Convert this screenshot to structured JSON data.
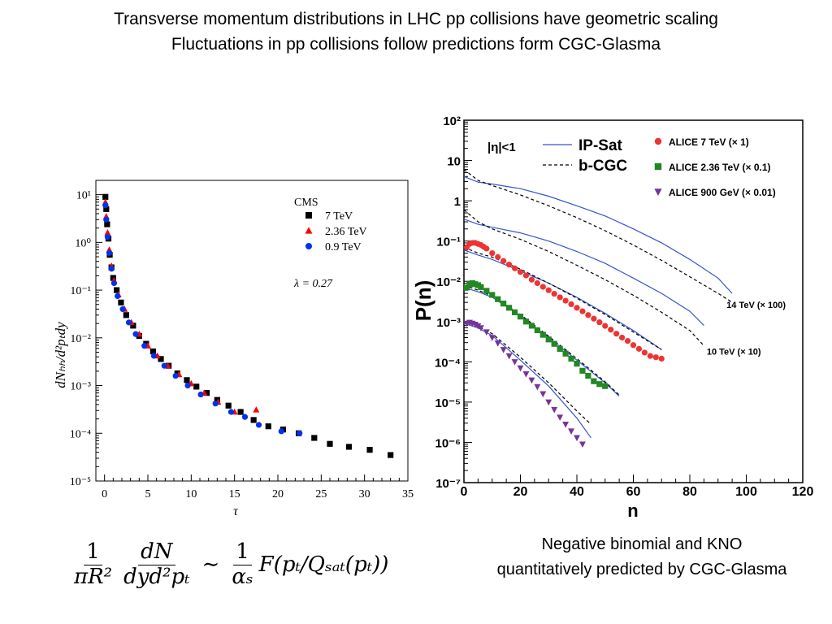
{
  "page": {
    "title_line1": "Transverse momentum distributions in LHC pp collisions have geometric scaling",
    "title_line2": "Fluctuations in pp collisions follow predictions form CGC-Glasma",
    "caption_line1": "Negative binomial and KNO",
    "caption_line2": "quantitatively predicted by CGC-Glasma",
    "formula": {
      "lhs1_num": "1",
      "lhs1_den": "πR²",
      "lhs2_num": "dN",
      "lhs2_den": "dyd²pₜ",
      "sim": "∼",
      "rhs_num": "1",
      "rhs_den": "αₛ",
      "rhs_fn": "F(pₜ/Qₛₐₜ(pₜ))"
    }
  },
  "chart_data": [
    {
      "type": "scatter",
      "yscale": "log",
      "xlim": [
        -1,
        35
      ],
      "ylim_log10": [
        -5,
        1.3
      ],
      "xticks": [
        "0",
        "5",
        "10",
        "15",
        "20",
        "25",
        "30",
        "35"
      ],
      "xtick_values": [
        0,
        5,
        10,
        15,
        20,
        25,
        30,
        35
      ],
      "yticks": [
        "10⁻⁵",
        "10⁻⁴",
        "10⁻³",
        "10⁻²",
        "10⁻¹",
        "10⁰",
        "10¹"
      ],
      "ytick_exps": [
        -5,
        -4,
        -3,
        -2,
        -1,
        0,
        1
      ],
      "xlabel": "τ",
      "ylabel": "dNₕₕ/d²pₜdy",
      "legend_title": "CMS",
      "annotation": "λ = 0.27",
      "series": [
        {
          "name": "7 TeV",
          "color": "#000000",
          "marker": "square",
          "x": [
            0.1,
            0.2,
            0.3,
            0.45,
            0.6,
            0.8,
            1.0,
            1.4,
            1.9,
            2.5,
            3.3,
            4.0,
            4.8,
            5.6,
            6.5,
            7.4,
            8.4,
            9.5,
            10.6,
            11.8,
            13.0,
            14.3,
            15.7,
            17.2,
            18.9,
            20.6,
            22.4,
            24.2,
            26.0,
            28.2,
            30.6,
            33.0
          ],
          "y": [
            9.0,
            5.0,
            2.4,
            1.2,
            0.55,
            0.3,
            0.18,
            0.1,
            0.055,
            0.03,
            0.018,
            0.011,
            0.0075,
            0.0052,
            0.0036,
            0.0026,
            0.0018,
            0.0013,
            0.00095,
            0.0007,
            0.0005,
            0.00038,
            0.00028,
            0.00019,
            0.00014,
            0.00012,
            0.0001,
            8e-05,
            6e-05,
            5.2e-05,
            4.5e-05,
            3.5e-05
          ]
        },
        {
          "name": "2.36 TeV",
          "color": "#ff0000",
          "marker": "triangle",
          "x": [
            0.1,
            0.2,
            0.35,
            0.55,
            0.8,
            1.1,
            1.6,
            2.3,
            3.1,
            4.0,
            5.0,
            6.1,
            7.3,
            8.6,
            10.0,
            11.5,
            13.1,
            15.0,
            17.5
          ],
          "y": [
            7.0,
            3.5,
            1.6,
            0.7,
            0.32,
            0.16,
            0.08,
            0.04,
            0.021,
            0.012,
            0.0068,
            0.0042,
            0.0026,
            0.0017,
            0.0011,
            0.0007,
            0.00045,
            0.00028,
            0.00031
          ]
        },
        {
          "name": "0.9 TeV",
          "color": "#0033ee",
          "marker": "circle",
          "x": [
            0.1,
            0.2,
            0.35,
            0.55,
            0.8,
            1.1,
            1.5,
            2.1,
            2.8,
            3.6,
            4.6,
            5.7,
            6.9,
            8.2,
            9.6,
            11.1,
            12.8,
            14.6,
            16.2,
            17.8,
            20.4,
            22.5
          ],
          "y": [
            6.0,
            3.0,
            1.3,
            0.6,
            0.28,
            0.14,
            0.075,
            0.04,
            0.021,
            0.012,
            0.0068,
            0.0042,
            0.0026,
            0.0016,
            0.001,
            0.00065,
            0.00042,
            0.00028,
            0.00022,
            0.00015,
            0.00011,
            0.0001
          ]
        }
      ]
    },
    {
      "type": "scatter",
      "yscale": "log",
      "xlim": [
        0,
        120
      ],
      "ylim_log10": [
        -7,
        2
      ],
      "xticks": [
        "0",
        "20",
        "40",
        "60",
        "80",
        "100",
        "120"
      ],
      "xtick_values": [
        0,
        20,
        40,
        60,
        80,
        100,
        120
      ],
      "yticks": [
        "10⁻⁷",
        "10⁻⁶",
        "10⁻⁵",
        "10⁻⁴",
        "10⁻³",
        "10⁻²",
        "10⁻¹",
        "1",
        "10",
        "10²"
      ],
      "ytick_exps": [
        -7,
        -6,
        -5,
        -4,
        -3,
        -2,
        -1,
        0,
        1,
        2
      ],
      "xlabel": "n",
      "ylabel": "P(n)",
      "eta_label": "|η|<1",
      "curve_legend": [
        {
          "name": "IP-Sat",
          "color": "#3355cc",
          "dash": "none"
        },
        {
          "name": "b-CGC",
          "color": "#000000",
          "dash": "4,3"
        }
      ],
      "series": [
        {
          "name": "ALICE 7 TeV (× 1)",
          "color": "#ee3333",
          "marker": "circle",
          "x": [
            1,
            2,
            3,
            4,
            5,
            6,
            7,
            8,
            10,
            12,
            14,
            16,
            18,
            20,
            22,
            24,
            26,
            28,
            30,
            32,
            34,
            36,
            38,
            40,
            42,
            44,
            46,
            48,
            50,
            52,
            54,
            56,
            58,
            60,
            62,
            64,
            66,
            68,
            70
          ],
          "y": [
            0.07,
            0.085,
            0.09,
            0.09,
            0.085,
            0.08,
            0.072,
            0.065,
            0.05,
            0.04,
            0.032,
            0.026,
            0.021,
            0.017,
            0.014,
            0.011,
            0.009,
            0.0073,
            0.006,
            0.0049,
            0.004,
            0.0033,
            0.0027,
            0.0022,
            0.0018,
            0.00145,
            0.00118,
            0.00096,
            0.00078,
            0.00063,
            0.0005,
            0.0004,
            0.00033,
            0.00026,
            0.00021,
            0.00017,
            0.00014,
            0.00013,
            0.00012
          ]
        },
        {
          "name": "ALICE 2.36 TeV (× 0.1)",
          "color": "#228822",
          "marker": "square",
          "x": [
            1,
            2,
            3,
            4,
            5,
            6,
            8,
            10,
            12,
            14,
            16,
            18,
            20,
            22,
            24,
            26,
            28,
            30,
            32,
            34,
            36,
            38,
            40,
            42,
            44,
            46,
            48,
            50
          ],
          "y": [
            0.007,
            0.0085,
            0.009,
            0.0085,
            0.008,
            0.0072,
            0.0058,
            0.0046,
            0.0036,
            0.0028,
            0.0022,
            0.0017,
            0.00133,
            0.001,
            0.00079,
            0.00061,
            0.00047,
            0.00036,
            0.00028,
            0.00021,
            0.00016,
            0.00012,
            9e-05,
            6e-05,
            4.5e-05,
            3.3e-05,
            2.8e-05,
            2.5e-05
          ]
        },
        {
          "name": "ALICE 900 GeV (× 0.01)",
          "color": "#773399",
          "marker": "triangle-down",
          "x": [
            1,
            2,
            3,
            4,
            5,
            6,
            8,
            10,
            12,
            14,
            16,
            18,
            20,
            22,
            24,
            26,
            28,
            30,
            32,
            34,
            36,
            38,
            40,
            42
          ],
          "y": [
            0.0009,
            0.00095,
            0.0009,
            0.00085,
            0.00078,
            0.0007,
            0.00055,
            0.0004,
            0.00029,
            0.0002,
            0.00014,
            0.0001,
            7e-05,
            5e-05,
            3.5e-05,
            2.4e-05,
            1.6e-05,
            1e-05,
            6.5e-06,
            4.2e-06,
            2.8e-06,
            1.9e-06,
            1.3e-06,
            9e-07
          ]
        }
      ],
      "curves": [
        {
          "name": "IP-Sat",
          "group": "14 TeV (× 100)",
          "color": "#3355cc",
          "dash": "none",
          "x": [
            0,
            5,
            10,
            20,
            30,
            40,
            50,
            60,
            70,
            80,
            90,
            95
          ],
          "y": [
            4.0,
            2.9,
            2.6,
            2.0,
            1.3,
            0.75,
            0.42,
            0.2,
            0.09,
            0.035,
            0.012,
            0.005
          ]
        },
        {
          "name": "b-CGC",
          "group": "14 TeV (× 100)",
          "color": "#000000",
          "dash": "4,3",
          "x": [
            0,
            5,
            10,
            20,
            30,
            40,
            50,
            60,
            70,
            80,
            90,
            95
          ],
          "y": [
            6.0,
            3.2,
            2.4,
            1.4,
            0.75,
            0.38,
            0.18,
            0.08,
            0.033,
            0.013,
            0.005,
            0.003
          ]
        },
        {
          "name": "IP-Sat",
          "group": "10 TeV (× 10)",
          "color": "#3355cc",
          "dash": "none",
          "x": [
            0,
            5,
            10,
            20,
            30,
            40,
            50,
            60,
            70,
            80,
            85
          ],
          "y": [
            0.35,
            0.26,
            0.22,
            0.16,
            0.1,
            0.055,
            0.028,
            0.012,
            0.005,
            0.0018,
            0.0008
          ]
        },
        {
          "name": "b-CGC",
          "group": "10 TeV (× 10)",
          "color": "#000000",
          "dash": "4,3",
          "x": [
            0,
            5,
            10,
            20,
            30,
            40,
            50,
            60,
            70,
            80,
            85
          ],
          "y": [
            0.6,
            0.3,
            0.2,
            0.11,
            0.055,
            0.025,
            0.011,
            0.0045,
            0.0017,
            0.0006,
            0.00025
          ]
        },
        {
          "name": "IP-Sat",
          "group": "7 TeV",
          "color": "#3355cc",
          "dash": "none",
          "x": [
            0,
            5,
            10,
            20,
            30,
            40,
            50,
            60,
            70
          ],
          "y": [
            0.06,
            0.045,
            0.035,
            0.018,
            0.009,
            0.004,
            0.0016,
            0.0006,
            0.0002
          ]
        },
        {
          "name": "b-CGC",
          "group": "7 TeV",
          "color": "#000000",
          "dash": "4,3",
          "x": [
            0,
            5,
            10,
            20,
            30,
            40,
            50,
            60,
            70
          ],
          "y": [
            0.07,
            0.05,
            0.04,
            0.02,
            0.009,
            0.0038,
            0.0015,
            0.00055,
            0.0002
          ]
        },
        {
          "name": "IP-Sat",
          "group": "2.36 TeV",
          "color": "#3355cc",
          "dash": "none",
          "x": [
            0,
            5,
            10,
            20,
            30,
            40,
            50,
            55
          ],
          "y": [
            0.007,
            0.0055,
            0.004,
            0.0014,
            0.0004,
            0.00011,
            3e-05,
            1.4e-05
          ]
        },
        {
          "name": "b-CGC",
          "group": "2.36 TeV",
          "color": "#000000",
          "dash": "4,3",
          "x": [
            0,
            5,
            10,
            20,
            30,
            40,
            50,
            55
          ],
          "y": [
            0.008,
            0.006,
            0.0043,
            0.0015,
            0.00043,
            0.00012,
            3.2e-05,
            1.5e-05
          ]
        },
        {
          "name": "IP-Sat",
          "group": "900 GeV",
          "color": "#3355cc",
          "dash": "none",
          "x": [
            0,
            5,
            10,
            20,
            30,
            40,
            45
          ],
          "y": [
            0.0009,
            0.0007,
            0.00045,
            0.00011,
            2.5e-05,
            4e-06,
            1.3e-06
          ]
        },
        {
          "name": "b-CGC",
          "group": "900 GeV",
          "color": "#000000",
          "dash": "4,3",
          "x": [
            0,
            5,
            10,
            20,
            30,
            40,
            45
          ],
          "y": [
            0.001,
            0.00075,
            0.0005,
            0.00013,
            3e-05,
            6e-06,
            2.8e-06
          ]
        }
      ],
      "curve_labels": [
        {
          "text": "14 TeV (× 100)",
          "x": 93,
          "y": 0.0022
        },
        {
          "text": "10 TeV (× 10)",
          "x": 86,
          "y": 0.00015
        }
      ]
    }
  ]
}
